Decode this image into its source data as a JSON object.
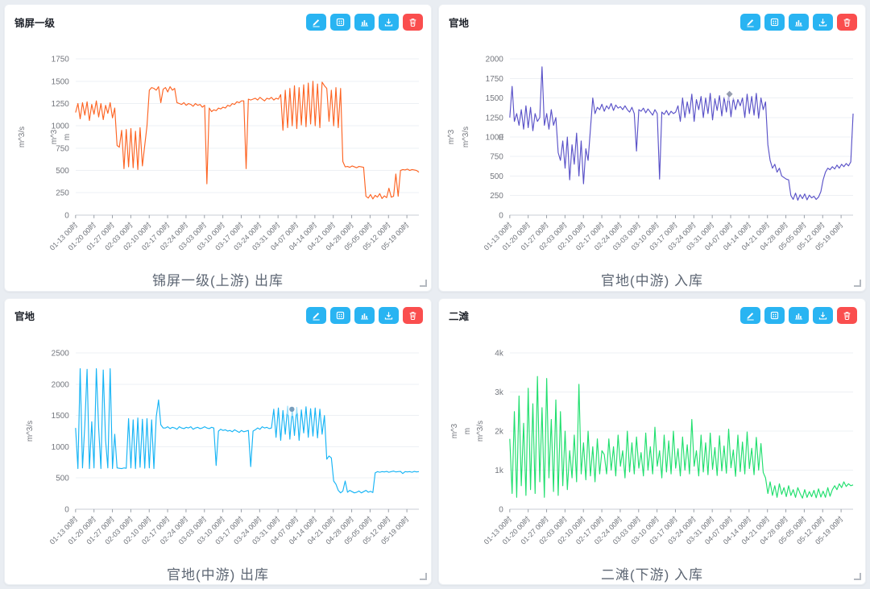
{
  "panels": [
    {
      "header_title": "锦屏一级"
    },
    {
      "header_title": "官地"
    },
    {
      "header_title": "官地"
    },
    {
      "header_title": "二滩"
    }
  ],
  "toolbar_buttons": [
    {
      "name": "edit",
      "icon": "pencil-icon",
      "color": "#29b4f2"
    },
    {
      "name": "table",
      "icon": "table-icon",
      "color": "#29b4f2"
    },
    {
      "name": "bar-chart",
      "icon": "bar-chart-icon",
      "color": "#29b4f2"
    },
    {
      "name": "download",
      "icon": "download-icon",
      "color": "#29b4f2"
    },
    {
      "name": "delete",
      "icon": "trash-icon",
      "color": "#fa4e4e"
    }
  ],
  "chart_data": [
    {
      "type": "line",
      "title": "锦屏一级(上游) 出库",
      "color": "#fd6423",
      "ylim": [
        0,
        1750
      ],
      "y_ticks": [
        0,
        250,
        500,
        750,
        1000,
        1250,
        1500,
        1750
      ],
      "y_tick_labels": [
        "0",
        "250",
        "500",
        "750",
        "1000",
        "1250",
        "1500",
        "1750"
      ],
      "y_axis_unit_labels": [
        "m^3/s",
        "m^3",
        "m"
      ],
      "x_tick_labels": [
        "01-13 00时",
        "01-20 00时",
        "01-27 00时",
        "02-03 00时",
        "02-10 00时",
        "02-17 00时",
        "02-24 00时",
        "03-03 00时",
        "03-10 00时",
        "03-17 00时",
        "03-24 00时",
        "03-31 00时",
        "04-07 00时",
        "04-14 00时",
        "04-21 00时",
        "04-28 00时",
        "05-05 00时",
        "05-12 00时",
        "05-19 00时"
      ],
      "grid": "horizontal",
      "legend": "none",
      "marker": null,
      "values": [
        1150,
        1250,
        1080,
        1260,
        1120,
        1270,
        1060,
        1240,
        1130,
        1280,
        1100,
        1250,
        1070,
        1230,
        1140,
        1260,
        1090,
        1200,
        780,
        760,
        950,
        520,
        960,
        540,
        970,
        530,
        940,
        510,
        980,
        550,
        780,
        1000,
        1400,
        1430,
        1420,
        1400,
        1440,
        1260,
        1410,
        1430,
        1380,
        1440,
        1400,
        1420,
        1260,
        1250,
        1240,
        1260,
        1230,
        1250,
        1240,
        1220,
        1250,
        1230,
        1240,
        1210,
        1230,
        350,
        1200,
        1160,
        1180,
        1170,
        1200,
        1190,
        1210,
        1200,
        1230,
        1220,
        1250,
        1240,
        1270,
        1260,
        1280,
        1280,
        520,
        1300,
        1290,
        1300,
        1310,
        1290,
        1320,
        1300,
        1280,
        1310,
        1300,
        1320,
        1290,
        1310,
        1300,
        1350,
        950,
        1400,
        980,
        1420,
        1000,
        1450,
        970,
        1430,
        1010,
        1460,
        990,
        1480,
        1020,
        1500,
        1000,
        1470,
        980,
        1490,
        1450,
        1420,
        1050,
        1400,
        1000,
        1430,
        980,
        1420,
        600,
        540,
        545,
        535,
        550,
        540,
        530,
        545,
        540,
        535,
        210,
        190,
        230,
        180,
        220,
        200,
        240,
        185,
        215,
        195,
        300,
        200,
        210,
        460,
        210,
        500,
        510,
        505,
        515,
        500,
        510,
        505,
        500,
        480
      ]
    },
    {
      "type": "line",
      "title": "官地(中游) 入库",
      "color": "#5a52c8",
      "ylim": [
        0,
        2000
      ],
      "y_ticks": [
        0,
        250,
        500,
        750,
        1000,
        1250,
        1500,
        1750,
        2000
      ],
      "y_tick_labels": [
        "0",
        "250",
        "500",
        "750",
        "1000",
        "1250",
        "1500",
        "1750",
        "2000"
      ],
      "y_axis_unit_labels": [
        "m^3",
        "m^3/s",
        "m"
      ],
      "x_tick_labels": [
        "01-13 00时",
        "01-20 00时",
        "01-27 00时",
        "02-03 00时",
        "02-10 00时",
        "02-17 00时",
        "02-24 00时",
        "03-03 00时",
        "03-10 00时",
        "03-17 00时",
        "03-24 00时",
        "03-31 00时",
        "04-07 00时",
        "04-14 00时",
        "04-21 00时",
        "04-28 00时",
        "05-05 00时",
        "05-12 00时",
        "05-19 00时"
      ],
      "grid": "horizontal",
      "legend": "none",
      "marker": {
        "frac": 0.64,
        "value": 1550,
        "shape": "diamond"
      },
      "values": [
        1250,
        1650,
        1200,
        1300,
        1150,
        1350,
        1100,
        1400,
        1120,
        1380,
        1080,
        1300,
        1200,
        1250,
        1900,
        1150,
        1300,
        1100,
        1350,
        1150,
        1250,
        800,
        700,
        950,
        600,
        1000,
        450,
        900,
        650,
        1050,
        500,
        950,
        400,
        850,
        700,
        1100,
        1500,
        1300,
        1380,
        1350,
        1420,
        1330,
        1400,
        1360,
        1430,
        1340,
        1410,
        1370,
        1390,
        1350,
        1400,
        1350,
        1320,
        1380,
        1300,
        820,
        1350,
        1330,
        1370,
        1310,
        1360,
        1320,
        1280,
        1350,
        1300,
        460,
        1320,
        1290,
        1340,
        1280,
        1330,
        1300,
        1320,
        1400,
        1200,
        1500,
        1250,
        1450,
        1300,
        1550,
        1200,
        1480,
        1350,
        1520,
        1250,
        1500,
        1300,
        1560,
        1220,
        1490,
        1340,
        1530,
        1270,
        1510,
        1320,
        1540,
        1260,
        1500,
        1350,
        1480,
        1400,
        1500,
        1250,
        1550,
        1300,
        1520,
        1280,
        1560,
        1240,
        1500,
        1350,
        1450,
        900,
        700,
        600,
        650,
        550,
        600,
        500,
        480,
        460,
        450,
        250,
        200,
        280,
        190,
        260,
        210,
        270,
        195,
        255,
        220,
        240,
        200,
        230,
        300,
        450,
        550,
        600,
        580,
        620,
        590,
        640,
        600,
        650,
        620,
        660,
        630,
        680,
        1300
      ]
    },
    {
      "type": "line",
      "title": "官地(中游) 出库",
      "color": "#16b4f5",
      "ylim": [
        0,
        2500
      ],
      "y_ticks": [
        0,
        500,
        1000,
        1500,
        2000,
        2500
      ],
      "y_tick_labels": [
        "0",
        "500",
        "1000",
        "1500",
        "2000",
        "2500"
      ],
      "y_axis_unit_labels": [
        "m^3/s"
      ],
      "x_tick_labels": [
        "01-13 00时",
        "01-20 00时",
        "01-27 00时",
        "02-03 00时",
        "02-10 00时",
        "02-17 00时",
        "02-24 00时",
        "03-03 00时",
        "03-10 00时",
        "03-17 00时",
        "03-24 00时",
        "03-31 00时",
        "04-07 00时",
        "04-14 00时",
        "04-21 00时",
        "04-28 00时",
        "05-05 00时",
        "05-12 00时",
        "05-19 00时"
      ],
      "grid": "horizontal",
      "legend": "none",
      "marker": {
        "frac": 0.63,
        "value": 1600,
        "shape": "circle"
      },
      "values": [
        1300,
        650,
        2250,
        660,
        1350,
        2240,
        650,
        1400,
        660,
        2250,
        1300,
        650,
        2230,
        1100,
        660,
        2250,
        650,
        1200,
        660,
        655,
        650,
        660,
        655,
        1450,
        660,
        1430,
        650,
        1460,
        670,
        1440,
        655,
        1450,
        660,
        1430,
        650,
        1480,
        1750,
        1350,
        1300,
        1300,
        1320,
        1290,
        1310,
        1300,
        1280,
        1320,
        1300,
        1290,
        1310,
        1300,
        1320,
        1280,
        1300,
        1310,
        1290,
        1300,
        1320,
        1300,
        1290,
        1310,
        1300,
        700,
        1250,
        1280,
        1260,
        1270,
        1250,
        1260,
        1240,
        1270,
        1250,
        1230,
        1260,
        1240,
        1250,
        1260,
        680,
        1250,
        1270,
        1300,
        1280,
        1320,
        1300,
        1310,
        1290,
        1300,
        1600,
        1150,
        1620,
        1100,
        1580,
        1200,
        1650,
        1120,
        1600,
        1180,
        1630,
        1100,
        1590,
        1220,
        1640,
        1150,
        1610,
        1170,
        1620,
        1140,
        1600,
        1200,
        1500,
        800,
        850,
        820,
        450,
        400,
        300,
        260,
        290,
        450,
        270,
        300,
        280,
        260,
        270,
        290,
        260,
        280,
        300,
        270,
        285,
        265,
        580,
        600,
        590,
        600,
        595,
        605,
        590,
        600,
        610,
        595,
        600,
        605,
        570,
        600,
        595,
        600,
        590,
        605,
        595,
        600
      ]
    },
    {
      "type": "line",
      "title": "二滩(下游) 入库",
      "color": "#20df6e",
      "ylim": [
        0,
        4000
      ],
      "y_ticks": [
        0,
        1000,
        2000,
        3000,
        4000
      ],
      "y_tick_labels": [
        "0",
        "1k",
        "2k",
        "3k",
        "4k"
      ],
      "y_axis_unit_labels": [
        "m^3",
        "m",
        "m^3/s"
      ],
      "x_tick_labels": [
        "01-13 00时",
        "01-20 00时",
        "01-27 00时",
        "02-03 00时",
        "02-10 00时",
        "02-17 00时",
        "02-24 00时",
        "03-03 00时",
        "03-10 00时",
        "03-17 00时",
        "03-24 00时",
        "03-31 00时",
        "04-07 00时",
        "04-14 00时",
        "04-21 00时",
        "04-28 00时",
        "05-05 00时",
        "05-12 00时",
        "05-19 00时"
      ],
      "grid": "horizontal",
      "legend": "none",
      "marker": null,
      "values": [
        1800,
        400,
        2500,
        300,
        2900,
        600,
        2200,
        350,
        3100,
        500,
        2700,
        400,
        3400,
        700,
        2600,
        300,
        3350,
        800,
        2300,
        450,
        2800,
        350,
        2500,
        600,
        2000,
        500,
        1500,
        800,
        1900,
        700,
        3200,
        900,
        1700,
        750,
        2000,
        850,
        1600,
        700,
        1800,
        900,
        1500,
        1400,
        900,
        1800,
        1000,
        1600,
        850,
        1900,
        1100,
        1500,
        800,
        2000,
        950,
        1700,
        900,
        1850,
        1050,
        1450,
        850,
        1950,
        1000,
        1600,
        900,
        2100,
        1100,
        1500,
        800,
        1900,
        950,
        1750,
        900,
        2000,
        1050,
        1550,
        850,
        1850,
        1000,
        1650,
        900,
        2300,
        1100,
        1500,
        850,
        1900,
        950,
        1700,
        880,
        1950,
        1020,
        1580,
        860,
        1880,
        980,
        1620,
        920,
        2050,
        1060,
        1520,
        840,
        1900,
        960,
        1720,
        900,
        1980,
        1040,
        1560,
        880,
        1840,
        1000,
        1680,
        940,
        800,
        400,
        700,
        350,
        600,
        300,
        650,
        380,
        550,
        320,
        600,
        350,
        500,
        300,
        550,
        400,
        280,
        500,
        300,
        450,
        320,
        480,
        290,
        520,
        310,
        460,
        300,
        550,
        330,
        500,
        600,
        500,
        650,
        550,
        700,
        580,
        650,
        600,
        620
      ]
    }
  ]
}
